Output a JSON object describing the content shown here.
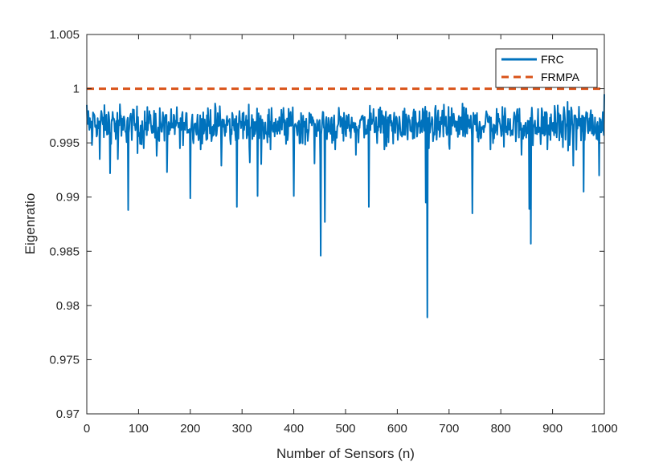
{
  "chart_data": {
    "type": "line",
    "title": "",
    "xlabel": "Number of Sensors (n)",
    "ylabel": "Eigenratio",
    "xlim": [
      0,
      1000
    ],
    "ylim": [
      0.97,
      1.005
    ],
    "xticks": [
      0,
      100,
      200,
      300,
      400,
      500,
      600,
      700,
      800,
      900,
      1000
    ],
    "xtick_labels": [
      "0",
      "100",
      "200",
      "300",
      "400",
      "500",
      "600",
      "700",
      "800",
      "900",
      "1000"
    ],
    "yticks": [
      0.97,
      0.975,
      0.98,
      0.985,
      0.99,
      0.995,
      1.0,
      1.005
    ],
    "ytick_labels": [
      "0.97",
      "0.975",
      "0.98",
      "0.985",
      "0.99",
      "0.995",
      "1",
      "1.005"
    ],
    "grid": false,
    "legend_position": "top-right",
    "series": [
      {
        "name": "FRC",
        "color": "#0072BD",
        "style": "solid",
        "baseline": 0.9967,
        "noise_amplitude": 0.0015,
        "x": [
          0,
          5,
          10,
          15,
          25,
          35,
          45,
          55,
          60,
          70,
          80,
          90,
          100,
          110,
          120,
          135,
          150,
          155,
          160,
          170,
          180,
          190,
          200,
          210,
          220,
          240,
          260,
          280,
          290,
          300,
          315,
          330,
          340,
          355,
          370,
          385,
          400,
          420,
          440,
          452,
          460,
          470,
          480,
          500,
          520,
          545,
          560,
          575,
          590,
          620,
          640,
          655,
          658,
          661,
          680,
          700,
          720,
          745,
          760,
          780,
          800,
          820,
          840,
          855,
          858,
          870,
          890,
          900,
          920,
          940,
          960,
          980,
          990,
          1000
        ],
        "y": [
          0.9985,
          0.9962,
          0.9948,
          0.9975,
          0.9935,
          0.997,
          0.9922,
          0.9968,
          0.9935,
          0.9962,
          0.9888,
          0.9975,
          0.9958,
          0.9945,
          0.9968,
          0.9938,
          0.9952,
          0.9923,
          0.9968,
          0.9958,
          0.9945,
          0.9962,
          0.9899,
          0.9968,
          0.9944,
          0.9961,
          0.9929,
          0.9958,
          0.9891,
          0.9968,
          0.9932,
          0.9901,
          0.9967,
          0.9944,
          0.9961,
          0.9949,
          0.9901,
          0.9965,
          0.9931,
          0.9846,
          0.9877,
          0.9962,
          0.9944,
          0.9958,
          0.9939,
          0.9891,
          0.9962,
          0.9944,
          0.9961,
          0.9953,
          0.9968,
          0.9895,
          0.9789,
          0.9945,
          0.9962,
          0.9949,
          0.9958,
          0.9885,
          0.9966,
          0.9944,
          0.9962,
          0.9958,
          0.9939,
          0.9889,
          0.9857,
          0.9958,
          0.9944,
          0.9961,
          0.9946,
          0.9929,
          0.9905,
          0.9958,
          0.992,
          0.9995
        ]
      },
      {
        "name": "FRMPA",
        "color": "#D95319",
        "style": "dashed",
        "x": [
          0,
          1000
        ],
        "y": [
          1.0,
          1.0
        ]
      }
    ]
  }
}
